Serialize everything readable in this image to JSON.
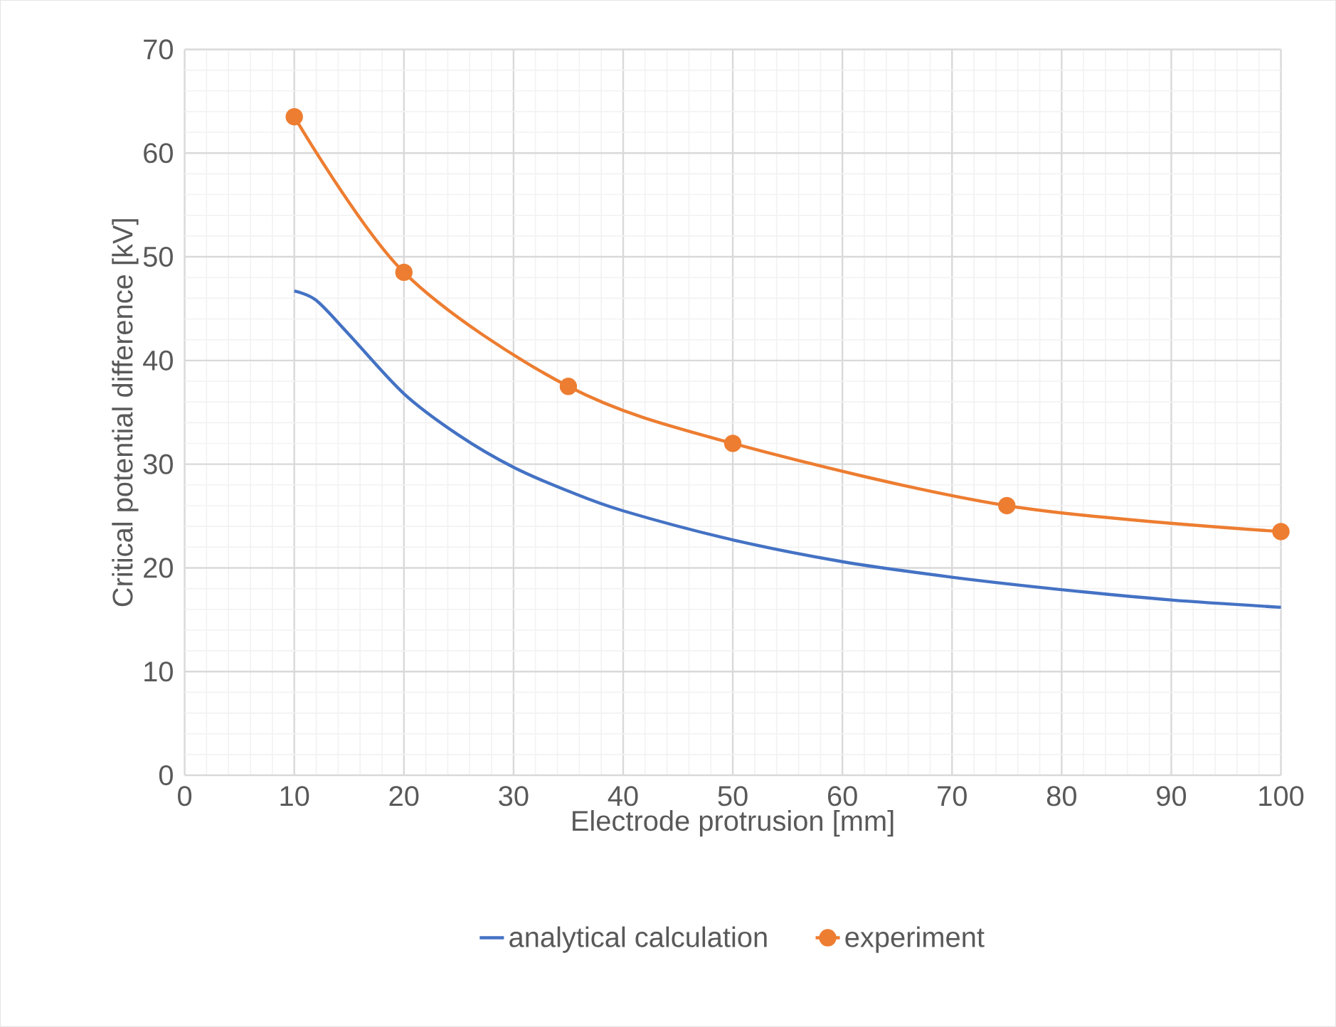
{
  "chart_data": {
    "type": "line",
    "xlabel": "Electrode protrusion [mm]",
    "ylabel": "Critical potential difference [kV]",
    "xlim": [
      0,
      100
    ],
    "xticks": [
      0,
      10,
      20,
      30,
      40,
      50,
      60,
      70,
      80,
      90,
      100
    ],
    "ylim": [
      0,
      70
    ],
    "yticks": [
      0,
      10,
      20,
      30,
      40,
      50,
      60,
      70
    ],
    "grid": true,
    "legend": "bottom",
    "series": [
      {
        "name": "analytical calculation",
        "color": "#4472c4",
        "marker": "none",
        "x": [
          10,
          12,
          15,
          20,
          25,
          30,
          35,
          40,
          50,
          60,
          70,
          80,
          90,
          100
        ],
        "values": [
          46.7,
          45.8,
          42.5,
          36.8,
          32.8,
          29.7,
          27.4,
          25.5,
          22.7,
          20.6,
          19.1,
          17.9,
          16.9,
          16.2
        ]
      },
      {
        "name": "experiment",
        "color": "#ed7d31",
        "marker": "circle",
        "x": [
          10,
          20,
          35,
          50,
          75,
          100
        ],
        "values": [
          63.5,
          48.5,
          37.5,
          32,
          26,
          23.5
        ]
      }
    ]
  }
}
